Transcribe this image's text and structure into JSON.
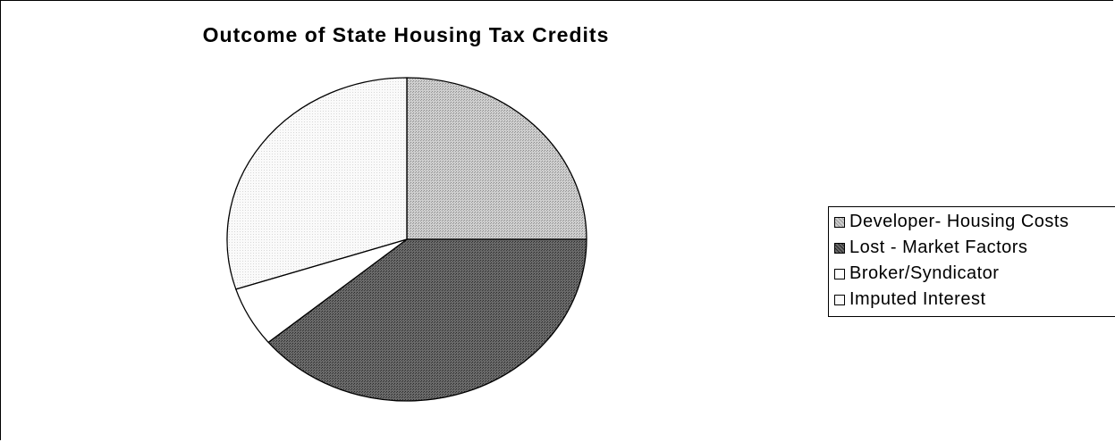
{
  "chart_data": {
    "type": "pie",
    "title": "Outcome of State Housing Tax Credits",
    "categories": [
      "Developer- Housing Costs",
      "Lost - Market Factors",
      "Broker/Syndicator",
      "Imputed Interest"
    ],
    "values": [
      25,
      39,
      6,
      30
    ],
    "colors": [
      "#b8b8b8",
      "#5a5a5a",
      "#ffffff",
      "#f4f4f4"
    ],
    "legend_position": "right",
    "start_angle_deg": 0,
    "direction": "clockwise"
  }
}
